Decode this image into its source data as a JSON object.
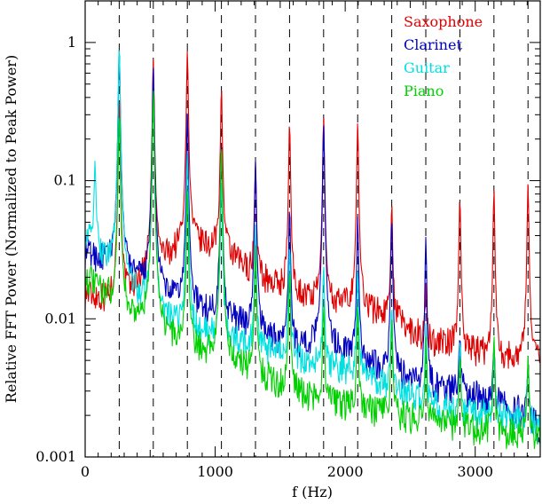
{
  "chart_data": {
    "type": "line",
    "title": "",
    "xlabel": "f (Hz)",
    "ylabel": "Relative FFT Power (Normalized to Peak Power)",
    "xlim": [
      0,
      3500
    ],
    "ylim": [
      0.001,
      2.0
    ],
    "yscale": "log",
    "x_ticks": [
      0,
      1000,
      2000,
      3000
    ],
    "x_tick_labels": [
      "0",
      "1000",
      "2000",
      "3000"
    ],
    "y_ticks": [
      0.001,
      0.01,
      0.1,
      1
    ],
    "y_tick_labels": [
      "0.001",
      "0.01",
      "0.1",
      "1"
    ],
    "grid": false,
    "legend_position": "top-right",
    "fundamental_hz": 262,
    "harmonic_markers_hz": [
      262,
      524,
      786,
      1048,
      1310,
      1572,
      1834,
      2096,
      2358,
      2620,
      2882,
      3144,
      3406
    ],
    "series": [
      {
        "name": "Saxophone",
        "color": "#e00000",
        "peaks": [
          [
            262,
            0.4
          ],
          [
            524,
            0.75
          ],
          [
            786,
            0.85
          ],
          [
            1048,
            0.45
          ],
          [
            1310,
            0.12
          ],
          [
            1572,
            0.25
          ],
          [
            1834,
            0.28
          ],
          [
            2096,
            0.25
          ],
          [
            2358,
            0.06
          ],
          [
            2620,
            0.009
          ],
          [
            2882,
            0.07
          ],
          [
            3144,
            0.08
          ],
          [
            3406,
            0.09
          ]
        ],
        "floor": [
          [
            0,
            0.015
          ],
          [
            262,
            0.012
          ],
          [
            524,
            0.022
          ],
          [
            786,
            0.035
          ],
          [
            1048,
            0.03
          ],
          [
            1310,
            0.02
          ],
          [
            1572,
            0.015
          ],
          [
            1834,
            0.012
          ],
          [
            2096,
            0.012
          ],
          [
            2358,
            0.01
          ],
          [
            2620,
            0.007
          ],
          [
            2882,
            0.006
          ],
          [
            3144,
            0.005
          ],
          [
            3406,
            0.005
          ],
          [
            3500,
            0.005
          ]
        ]
      },
      {
        "name": "Clarinet",
        "color": "#0000c0",
        "peaks": [
          [
            262,
            0.95
          ],
          [
            524,
            0.65
          ],
          [
            786,
            0.3
          ],
          [
            1048,
            0.18
          ],
          [
            1310,
            0.13
          ],
          [
            1572,
            0.06
          ],
          [
            1834,
            0.25
          ],
          [
            2096,
            0.05
          ],
          [
            2358,
            0.05
          ],
          [
            2620,
            0.035
          ],
          [
            2882,
            0.005
          ],
          [
            3144,
            0.004
          ],
          [
            3406,
            0.003
          ]
        ],
        "floor": [
          [
            0,
            0.03
          ],
          [
            262,
            0.022
          ],
          [
            524,
            0.015
          ],
          [
            786,
            0.012
          ],
          [
            1048,
            0.01
          ],
          [
            1310,
            0.008
          ],
          [
            1572,
            0.006
          ],
          [
            1834,
            0.006
          ],
          [
            2096,
            0.005
          ],
          [
            2358,
            0.004
          ],
          [
            2620,
            0.003
          ],
          [
            2882,
            0.003
          ],
          [
            3144,
            0.0025
          ],
          [
            3406,
            0.002
          ],
          [
            3500,
            0.0015
          ]
        ]
      },
      {
        "name": "Guitar",
        "color": "#00e0e0",
        "peaks": [
          [
            75,
            0.11
          ],
          [
            262,
            0.95
          ],
          [
            524,
            0.4
          ],
          [
            786,
            0.15
          ],
          [
            1048,
            0.1
          ],
          [
            1310,
            0.04
          ],
          [
            1572,
            0.03
          ],
          [
            1834,
            0.02
          ],
          [
            2096,
            0.018
          ],
          [
            2358,
            0.01
          ],
          [
            2620,
            0.006
          ],
          [
            2882,
            0.005
          ],
          [
            3144,
            0.004
          ],
          [
            3406,
            0.003
          ]
        ],
        "floor": [
          [
            0,
            0.04
          ],
          [
            262,
            0.02
          ],
          [
            524,
            0.01
          ],
          [
            786,
            0.008
          ],
          [
            1048,
            0.007
          ],
          [
            1310,
            0.006
          ],
          [
            1572,
            0.005
          ],
          [
            1834,
            0.0045
          ],
          [
            2096,
            0.004
          ],
          [
            2358,
            0.003
          ],
          [
            2620,
            0.0025
          ],
          [
            2882,
            0.002
          ],
          [
            3144,
            0.002
          ],
          [
            3406,
            0.0018
          ],
          [
            3500,
            0.0015
          ]
        ]
      },
      {
        "name": "Piano",
        "color": "#00d000",
        "peaks": [
          [
            262,
            0.3
          ],
          [
            524,
            0.45
          ],
          [
            786,
            0.08
          ],
          [
            1048,
            0.18
          ],
          [
            1310,
            0.03
          ],
          [
            1572,
            0.02
          ],
          [
            1834,
            0.01
          ],
          [
            2096,
            0.01
          ],
          [
            2358,
            0.008
          ],
          [
            2620,
            0.005
          ],
          [
            2882,
            0.004
          ],
          [
            3144,
            0.006
          ],
          [
            3406,
            0.004
          ]
        ],
        "floor": [
          [
            0,
            0.02
          ],
          [
            262,
            0.012
          ],
          [
            524,
            0.008
          ],
          [
            786,
            0.006
          ],
          [
            1048,
            0.005
          ],
          [
            1310,
            0.004
          ],
          [
            1572,
            0.003
          ],
          [
            1834,
            0.0025
          ],
          [
            2096,
            0.0022
          ],
          [
            2358,
            0.002
          ],
          [
            2620,
            0.0018
          ],
          [
            2882,
            0.0016
          ],
          [
            3144,
            0.0015
          ],
          [
            3406,
            0.0014
          ],
          [
            3500,
            0.0013
          ]
        ]
      }
    ]
  }
}
